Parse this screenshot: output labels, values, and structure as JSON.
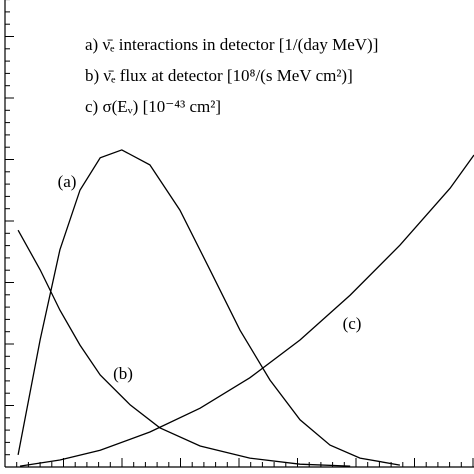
{
  "chart_data": {
    "type": "line",
    "xlim": [
      0,
      10
    ],
    "ylim": [
      0,
      10
    ],
    "series": [
      {
        "name": "a) ν̄ₑ interactions in detector [1/(day MeV)]",
        "label": "(a)",
        "color": "#000000",
        "x": [
          0.28,
          0.75,
          1.17,
          1.6,
          2.03,
          2.49,
          3.09,
          3.73,
          4.37,
          5.01,
          5.65,
          6.29,
          6.93,
          7.57,
          8.42
        ],
        "values": [
          0.26,
          2.73,
          4.65,
          5.93,
          6.62,
          6.79,
          6.47,
          5.5,
          4.22,
          2.93,
          1.86,
          1.01,
          0.47,
          0.19,
          0.04
        ]
      },
      {
        "name": "b) ν̄ₑ flux at detector [10⁸/(s MeV cm²)]",
        "label": "(b)",
        "color": "#000000",
        "x": [
          0.28,
          0.75,
          1.17,
          1.6,
          2.03,
          2.67,
          3.3,
          4.16,
          5.22,
          6.29,
          7.36
        ],
        "values": [
          5.07,
          4.22,
          3.36,
          2.61,
          1.97,
          1.33,
          0.84,
          0.45,
          0.19,
          0.06,
          0.02
        ]
      },
      {
        "name": "c) σ(Eᵥ) [10⁻⁴³ cm²]",
        "label": "(c)",
        "color": "#000000",
        "x": [
          0.32,
          1.17,
          2.03,
          3.09,
          4.16,
          5.22,
          6.29,
          7.36,
          8.42,
          9.49,
          10
        ],
        "values": [
          0.02,
          0.15,
          0.36,
          0.75,
          1.26,
          1.91,
          2.72,
          3.68,
          4.75,
          5.97,
          6.68
        ]
      }
    ]
  }
}
